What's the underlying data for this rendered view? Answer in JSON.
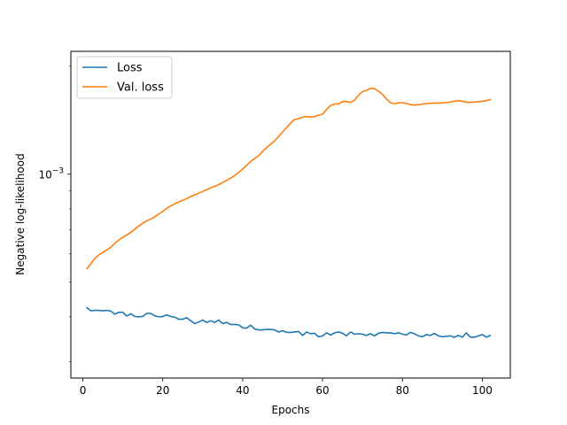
{
  "chart_data": {
    "type": "line",
    "title": "",
    "xlabel": "Epochs",
    "ylabel": "Negative log-likelihood",
    "xlim": [
      -3,
      107
    ],
    "ylim": [
      0.00027,
      0.0022
    ],
    "yscale": "log",
    "grid": false,
    "legend_placement": "top-left",
    "x_ticks": [
      {
        "value": 0,
        "label": "0"
      },
      {
        "value": 20,
        "label": "20"
      },
      {
        "value": 40,
        "label": "40"
      },
      {
        "value": 60,
        "label": "60"
      },
      {
        "value": 80,
        "label": "80"
      },
      {
        "value": 100,
        "label": "100"
      }
    ],
    "y_ticks": [
      {
        "value": 0.001,
        "label_base": "10",
        "label_exp": "−3"
      }
    ],
    "series": [
      {
        "name": "Loss",
        "color": "#1f77b4",
        "x": [
          1,
          2,
          3,
          4,
          5,
          6,
          7,
          8,
          9,
          10,
          11,
          12,
          13,
          14,
          15,
          16,
          17,
          18,
          19,
          20,
          21,
          22,
          23,
          24,
          25,
          26,
          27,
          28,
          29,
          30,
          31,
          32,
          33,
          34,
          35,
          36,
          37,
          38,
          39,
          40,
          41,
          42,
          43,
          44,
          45,
          46,
          47,
          48,
          49,
          50,
          51,
          52,
          53,
          54,
          55,
          56,
          57,
          58,
          59,
          60,
          61,
          62,
          63,
          64,
          65,
          66,
          67,
          68,
          69,
          70,
          71,
          72,
          73,
          74,
          75,
          76,
          77,
          78,
          79,
          80,
          81,
          82,
          83,
          84,
          85,
          86,
          87,
          88,
          89,
          90,
          91,
          92,
          93,
          94,
          95,
          96,
          97,
          98,
          99,
          100,
          101,
          102
        ],
        "values": [
          0.000424,
          0.000416,
          0.000417,
          0.000417,
          0.000416,
          0.000417,
          0.000415,
          0.000407,
          0.000412,
          0.000412,
          0.000402,
          0.000408,
          0.000401,
          0.0004,
          0.000401,
          0.000409,
          0.000409,
          0.000403,
          0.0004,
          0.000401,
          0.000405,
          0.000401,
          0.000399,
          0.000394,
          0.000394,
          0.000398,
          0.00039,
          0.000383,
          0.000387,
          0.000392,
          0.000386,
          0.00039,
          0.000386,
          0.000392,
          0.000383,
          0.000386,
          0.000381,
          0.000381,
          0.00038,
          0.000373,
          0.000372,
          0.000379,
          0.00037,
          0.000368,
          0.000368,
          0.000369,
          0.000369,
          0.000368,
          0.000363,
          0.000366,
          0.000362,
          0.000362,
          0.000363,
          0.000364,
          0.000355,
          0.000363,
          0.000359,
          0.00036,
          0.000352,
          0.000354,
          0.000361,
          0.000356,
          0.000361,
          0.000363,
          0.00036,
          0.000354,
          0.000363,
          0.000358,
          0.000359,
          0.000358,
          0.000355,
          0.000359,
          0.000354,
          0.00036,
          0.000362,
          0.000361,
          0.000361,
          0.000359,
          0.000361,
          0.000358,
          0.000356,
          0.000362,
          0.000359,
          0.000354,
          0.000352,
          0.000357,
          0.000355,
          0.00036,
          0.000354,
          0.000352,
          0.000353,
          0.000354,
          0.000351,
          0.000355,
          0.000351,
          0.000361,
          0.000351,
          0.000351,
          0.000354,
          0.000357,
          0.000351,
          0.000355
        ]
      },
      {
        "name": "Val. loss",
        "color": "#ff7f0e",
        "x": [
          1,
          2,
          3,
          4,
          5,
          6,
          7,
          8,
          9,
          10,
          11,
          12,
          13,
          14,
          15,
          16,
          17,
          18,
          19,
          20,
          21,
          22,
          23,
          24,
          25,
          26,
          27,
          28,
          29,
          30,
          31,
          32,
          33,
          34,
          35,
          36,
          37,
          38,
          39,
          40,
          41,
          42,
          43,
          44,
          45,
          46,
          47,
          48,
          49,
          50,
          51,
          52,
          53,
          54,
          55,
          56,
          57,
          58,
          59,
          60,
          61,
          62,
          63,
          64,
          65,
          66,
          67,
          68,
          69,
          70,
          71,
          72,
          73,
          74,
          75,
          76,
          77,
          78,
          79,
          80,
          81,
          82,
          83,
          84,
          85,
          86,
          87,
          88,
          89,
          90,
          91,
          92,
          93,
          94,
          95,
          96,
          97,
          98,
          99,
          100,
          101,
          102
        ],
        "values": [
          0.000545,
          0.000563,
          0.000583,
          0.000595,
          0.000605,
          0.000615,
          0.000625,
          0.000642,
          0.000655,
          0.000667,
          0.000677,
          0.000688,
          0.000703,
          0.000717,
          0.00073,
          0.000741,
          0.00075,
          0.00076,
          0.000774,
          0.000787,
          0.000803,
          0.000816,
          0.000826,
          0.000837,
          0.000845,
          0.000855,
          0.000866,
          0.000876,
          0.000885,
          0.000895,
          0.000905,
          0.000916,
          0.000925,
          0.000935,
          0.000948,
          0.000961,
          0.000975,
          0.000991,
          0.001012,
          0.001033,
          0.001058,
          0.001085,
          0.001105,
          0.001126,
          0.001157,
          0.001186,
          0.001211,
          0.001238,
          0.001273,
          0.001311,
          0.001348,
          0.001389,
          0.00142,
          0.001427,
          0.001443,
          0.001447,
          0.001443,
          0.001446,
          0.00146,
          0.001471,
          0.001514,
          0.001554,
          0.001569,
          0.001569,
          0.001594,
          0.001593,
          0.001584,
          0.001609,
          0.001659,
          0.0017,
          0.001712,
          0.001735,
          0.001731,
          0.001704,
          0.001669,
          0.00162,
          0.001582,
          0.001572,
          0.00158,
          0.001582,
          0.001575,
          0.001563,
          0.001558,
          0.001561,
          0.001568,
          0.001573,
          0.001577,
          0.001578,
          0.001579,
          0.00158,
          0.001583,
          0.00159,
          0.001597,
          0.001603,
          0.001596,
          0.001587,
          0.001585,
          0.001588,
          0.001593,
          0.001597,
          0.001603,
          0.001614
        ]
      }
    ]
  }
}
